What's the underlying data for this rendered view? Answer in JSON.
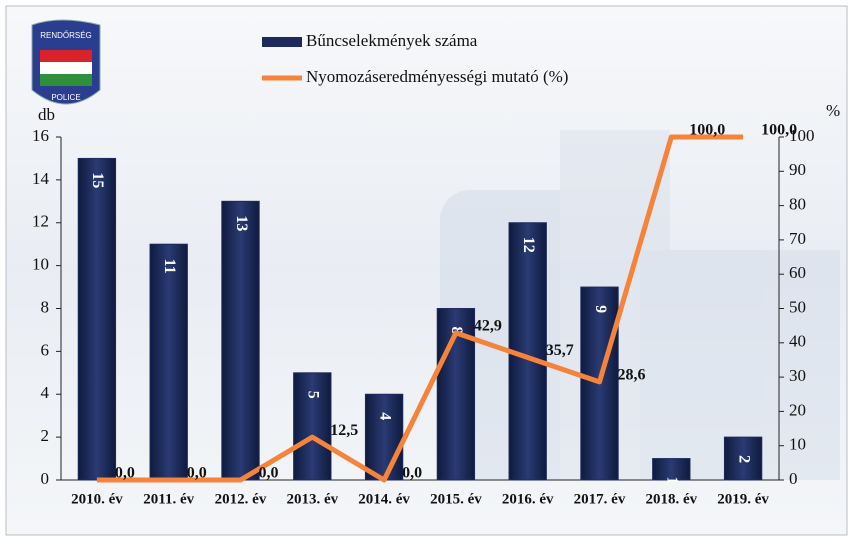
{
  "chart_data": {
    "type": "bar",
    "annotations": [
      "RENDŐRSÉG",
      "POLICE"
    ],
    "ylabel": "db",
    "y2label": "%",
    "categories": [
      "2010. év",
      "2011. év",
      "2012. év",
      "2013. év",
      "2014. év",
      "2015. év",
      "2016. év",
      "2017. év",
      "2018. év",
      "2019. év"
    ],
    "series": [
      {
        "name": "Bűncselekmények száma",
        "type": "bar",
        "color": "#1c2a5c",
        "values": [
          15,
          11,
          13,
          5,
          4,
          8,
          12,
          9,
          1,
          2
        ]
      },
      {
        "name": "Nyomozáseredményességi mutató (%)",
        "type": "line",
        "color": "#f5833a",
        "axis": "y2",
        "values": [
          0,
          0,
          0,
          12.5,
          0,
          42.9,
          35.7,
          28.6,
          100,
          100
        ],
        "value_labels": [
          "0,0",
          "0,0",
          "0,0",
          "12,5",
          "0,0",
          "42,9",
          "35,7",
          "28,6",
          "100,0",
          "100,0"
        ]
      }
    ],
    "ylim": [
      0,
      16
    ],
    "yticks": [
      0,
      2,
      4,
      6,
      8,
      10,
      12,
      14,
      16
    ],
    "y2lim": [
      0,
      100
    ],
    "y2ticks": [
      0,
      10,
      20,
      30,
      40,
      50,
      60,
      70,
      80,
      90,
      100
    ]
  }
}
